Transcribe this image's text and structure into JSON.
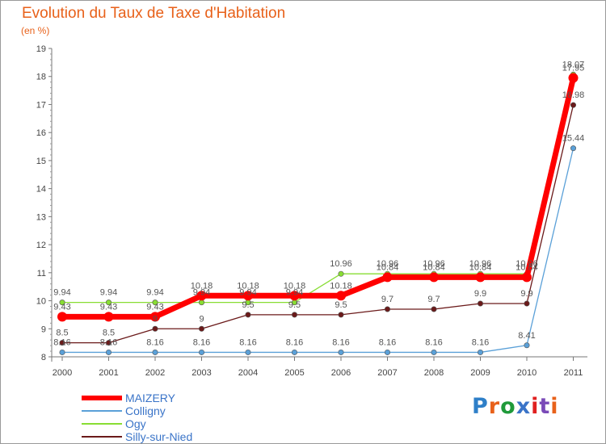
{
  "header": {
    "title": "Evolution du Taux de Taxe d'Habitation",
    "subtitle": "(en %)"
  },
  "chart_data": {
    "type": "line",
    "title": "Evolution du Taux de Taxe d'Habitation",
    "subtitle": "(en %)",
    "xlabel": "",
    "ylabel": "(en %)",
    "categories": [
      "2000",
      "2001",
      "2002",
      "2003",
      "2004",
      "2005",
      "2006",
      "2007",
      "2008",
      "2009",
      "2010",
      "2011"
    ],
    "ylim": [
      8,
      19
    ],
    "yticks": [
      8,
      9,
      10,
      11,
      12,
      13,
      14,
      15,
      16,
      17,
      18,
      19
    ],
    "grid": false,
    "legend_position": "bottom-left",
    "series": [
      {
        "name": "MAIZERY",
        "color": "#ff0000",
        "values": [
          9.43,
          9.43,
          9.43,
          10.18,
          10.18,
          10.18,
          10.18,
          10.84,
          10.84,
          10.84,
          10.84,
          17.95
        ],
        "labels": [
          "9.43",
          "9.43",
          "9.43",
          "10.18",
          "10.18",
          "10.18",
          "10.18",
          "10.84",
          "10.84",
          "10.84",
          "10.84",
          "17.95"
        ]
      },
      {
        "name": "Colligny",
        "color": "#5aa0d8",
        "values": [
          8.16,
          8.16,
          8.16,
          8.16,
          8.16,
          8.16,
          8.16,
          8.16,
          8.16,
          8.16,
          8.41,
          15.44
        ],
        "labels": [
          "8.16",
          "8.16",
          "8.16",
          "8.16",
          "8.16",
          "8.16",
          "8.16",
          "8.16",
          "8.16",
          "8.16",
          "8.41",
          "15.44"
        ]
      },
      {
        "name": "Ogy",
        "color": "#88dd33",
        "values": [
          9.94,
          9.94,
          9.94,
          9.94,
          9.94,
          9.94,
          10.96,
          10.96,
          10.96,
          10.96,
          10.96,
          18.07
        ],
        "labels": [
          "9.94",
          "9.94",
          "9.94",
          "9.94",
          "9.94",
          "9.94",
          "10.96",
          "10.96",
          "10.96",
          "10.96",
          "10.96",
          "18.07"
        ]
      },
      {
        "name": "Silly-sur-Nied",
        "color": "#6b1a1a",
        "values": [
          8.5,
          8.5,
          9,
          9,
          9.5,
          9.5,
          9.5,
          9.7,
          9.7,
          9.9,
          9.9,
          16.98
        ],
        "labels": [
          "8.5",
          "8.5",
          "9",
          "9",
          "9.5",
          "9.5",
          "9.5",
          "9.7",
          "9.7",
          "9.9",
          "9.9",
          "16.98"
        ]
      }
    ]
  },
  "legend": {
    "items": [
      "MAIZERY",
      "Colligny",
      "Ogy",
      "Silly-sur-Nied"
    ]
  },
  "logo": {
    "text": "Proxiti",
    "letter_colors": [
      "#2e7fc8",
      "#e8611a",
      "#1f9a3a",
      "#3a74c8",
      "#e02020",
      "#7a4ab8",
      "#e8611a"
    ]
  }
}
